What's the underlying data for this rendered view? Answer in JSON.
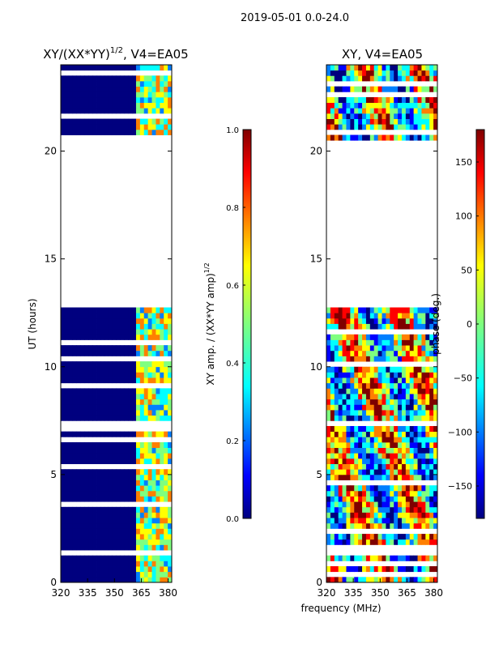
{
  "suptitle": "2019-05-01 0.0-24.0",
  "colors": {
    "jet": [
      "#00007f",
      "#0000ff",
      "#007fff",
      "#00ffff",
      "#7fff7f",
      "#ffff00",
      "#ff7f00",
      "#ff0000",
      "#7f0000"
    ]
  },
  "chart_data": [
    {
      "type": "heatmap",
      "title": "XY/(XX*YY)",
      "title_exponent": "1/2",
      "title_suffix": ", V4=EA05",
      "xlabel": "",
      "ylabel": "UT (hours)",
      "xlim": [
        320,
        382
      ],
      "ylim": [
        0,
        24
      ],
      "xticks": [
        320,
        335,
        350,
        365,
        380
      ],
      "yticks": [
        0,
        5,
        10,
        15,
        20
      ],
      "colorbar": {
        "label": "XY amp. / (XX*YY amp)",
        "label_exponent": "1/2",
        "range": [
          0.0,
          1.0
        ],
        "ticks": [
          "0.0",
          "0.2",
          "0.4",
          "0.6",
          "0.8",
          "1.0"
        ],
        "tick_values": [
          0.0,
          0.2,
          0.4,
          0.6,
          0.8,
          1.0
        ]
      },
      "flagged_ut_ranges": [
        [
          12.8,
          20.6
        ],
        [
          7.3,
          7.5
        ],
        [
          1.3,
          1.5
        ]
      ],
      "note": "mostly low amplitude (~0.0) below 362 MHz; higher values in 362-380 MHz band"
    },
    {
      "type": "heatmap",
      "title": "XY, V4=EA05",
      "title_exponent": "",
      "title_suffix": "",
      "xlabel": "frequency (MHz)",
      "ylabel": "",
      "xlim": [
        320,
        382
      ],
      "ylim": [
        0,
        24
      ],
      "xticks": [
        320,
        335,
        350,
        365,
        380
      ],
      "yticks": [
        0,
        5,
        10,
        15,
        20
      ],
      "colorbar": {
        "label": "phase (deg.)",
        "label_exponent": "",
        "range": [
          -180,
          180
        ],
        "ticks": [
          "−150",
          "−100",
          "−50",
          "0",
          "50",
          "100",
          "150"
        ],
        "tick_values": [
          -150,
          -100,
          -50,
          0,
          50,
          100,
          150
        ]
      },
      "flagged_ut_ranges": [
        [
          12.8,
          20.6
        ],
        [
          7.3,
          7.5
        ],
        [
          1.3,
          1.5
        ]
      ],
      "note": "phase varies across full range"
    }
  ]
}
